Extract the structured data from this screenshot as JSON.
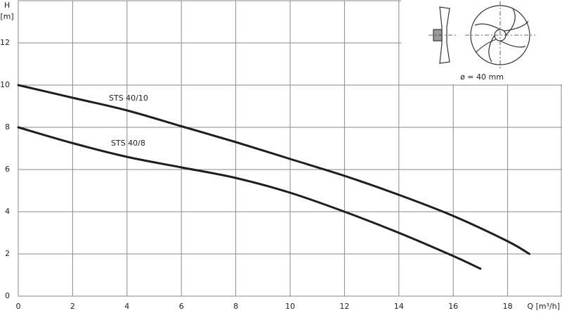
{
  "chart_data": {
    "type": "line",
    "ylabel": "H",
    "yunit": "[m]",
    "xlabel": "Q [m³/h]",
    "xlim": [
      0,
      20
    ],
    "xticks": [
      0,
      2,
      4,
      6,
      8,
      10,
      12,
      14,
      16,
      18
    ],
    "ylim": [
      0,
      14
    ],
    "yticks": [
      0,
      2,
      4,
      6,
      8,
      10,
      12
    ],
    "grid": true,
    "series": [
      {
        "name": "STS 40/10",
        "color": "#1e1e1e",
        "x": [
          0,
          2,
          4,
          6,
          8,
          10,
          12,
          14,
          16,
          18,
          18.8
        ],
        "y": [
          10,
          9.4,
          8.8,
          8.05,
          7.3,
          6.5,
          5.7,
          4.8,
          3.8,
          2.6,
          2.0
        ]
      },
      {
        "name": "STS 40/8",
        "color": "#1e1e1e",
        "x": [
          0,
          2,
          4,
          6,
          8,
          10,
          12,
          14,
          16,
          17
        ],
        "y": [
          8,
          7.25,
          6.6,
          6.1,
          5.6,
          4.9,
          4.0,
          3.0,
          1.9,
          1.3
        ]
      }
    ],
    "annotations": [
      "ø = 40 mm"
    ]
  }
}
